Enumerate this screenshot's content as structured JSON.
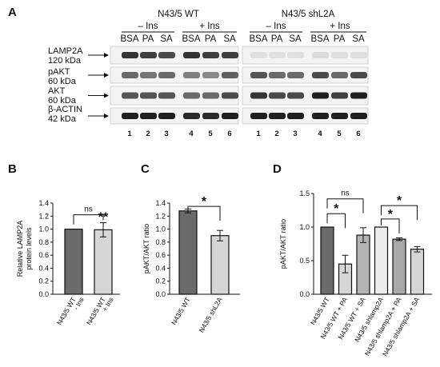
{
  "figure": {
    "panel_a": {
      "label": "A",
      "groups": [
        {
          "title": "N43/5 WT",
          "ins_minus": "– Ins",
          "ins_plus": "+ Ins"
        },
        {
          "title": "N43/5 shL2A",
          "ins_minus": "– Ins",
          "ins_plus": "+ Ins"
        }
      ],
      "lane_headers": [
        "BSA",
        "PA",
        "SA",
        "BSA",
        "PA",
        "SA"
      ],
      "lane_numbers": [
        "1",
        "2",
        "3",
        "4",
        "5",
        "6"
      ],
      "blots": [
        {
          "name": "LAMP2A",
          "size": "120 kDa"
        },
        {
          "name": "pAKT",
          "size": "60 kDa"
        },
        {
          "name": "AKT",
          "size": "60 kDa"
        },
        {
          "name": "β-ACTIN",
          "size": "42 kDa"
        }
      ]
    },
    "panel_b": {
      "label": "B"
    },
    "panel_c": {
      "label": "C"
    },
    "panel_d": {
      "label": "D"
    }
  },
  "chart_data": [
    {
      "panel": "B",
      "type": "bar",
      "ylabel": "Relative LAMP2A\nprotein levels",
      "ylim": [
        0,
        1.4
      ],
      "yticks": [
        "0.0",
        "0.2",
        "0.4",
        "0.6",
        "0.8",
        "1.0",
        "1.2",
        "1.4"
      ],
      "categories": [
        "N43/5 WT\n- Ins",
        "N43/5 WT\n+ Ins"
      ],
      "values": [
        1.0,
        0.99
      ],
      "errors": [
        0,
        0.11
      ],
      "bar_colors": [
        "#6b6b6b",
        "#d6d6d6"
      ],
      "significance": [
        {
          "between": [
            0,
            1
          ],
          "text": "ns"
        },
        {
          "on": 1,
          "text": "**"
        }
      ]
    },
    {
      "panel": "C",
      "type": "bar",
      "ylabel": "pAKT/AKT ratio",
      "ylim": [
        0,
        1.4
      ],
      "yticks": [
        "0.0",
        "0.2",
        "0.4",
        "0.6",
        "0.8",
        "1.0",
        "1.2",
        "1.4"
      ],
      "categories": [
        "N43/5 WT",
        "N43/5 shL2A"
      ],
      "values": [
        1.28,
        0.9
      ],
      "errors": [
        0.03,
        0.08
      ],
      "bar_colors": [
        "#6b6b6b",
        "#d6d6d6"
      ],
      "significance": [
        {
          "between": [
            0,
            1
          ],
          "text": "*"
        }
      ]
    },
    {
      "panel": "D",
      "type": "bar",
      "ylabel": "pAKT/AKT ratio",
      "ylim": [
        0,
        1.5
      ],
      "yticks": [
        "0.0",
        "0.5",
        "1.0",
        "1.5"
      ],
      "categories": [
        "N43/5 WT",
        "N43/5 WT + PA",
        "N43/5 WT + SA",
        "N43/5 shlamp2A",
        "N43/5 shlamp2A + PA",
        "N43/5 shlamp2A + SA"
      ],
      "values": [
        1.0,
        0.45,
        0.88,
        1.0,
        0.82,
        0.67
      ],
      "errors": [
        0,
        0.13,
        0.11,
        0,
        0.02,
        0.04
      ],
      "bar_colors": [
        "#6b6b6b",
        "#d6d6d6",
        "#b3b3b3",
        "#ececec",
        "#a8a8a8",
        "#d6d6d6"
      ],
      "significance": [
        {
          "between": [
            0,
            1
          ],
          "text": "*"
        },
        {
          "between": [
            0,
            2
          ],
          "text": "ns"
        },
        {
          "between": [
            3,
            4
          ],
          "text": "*"
        },
        {
          "between": [
            3,
            5
          ],
          "text": "*"
        }
      ]
    }
  ]
}
